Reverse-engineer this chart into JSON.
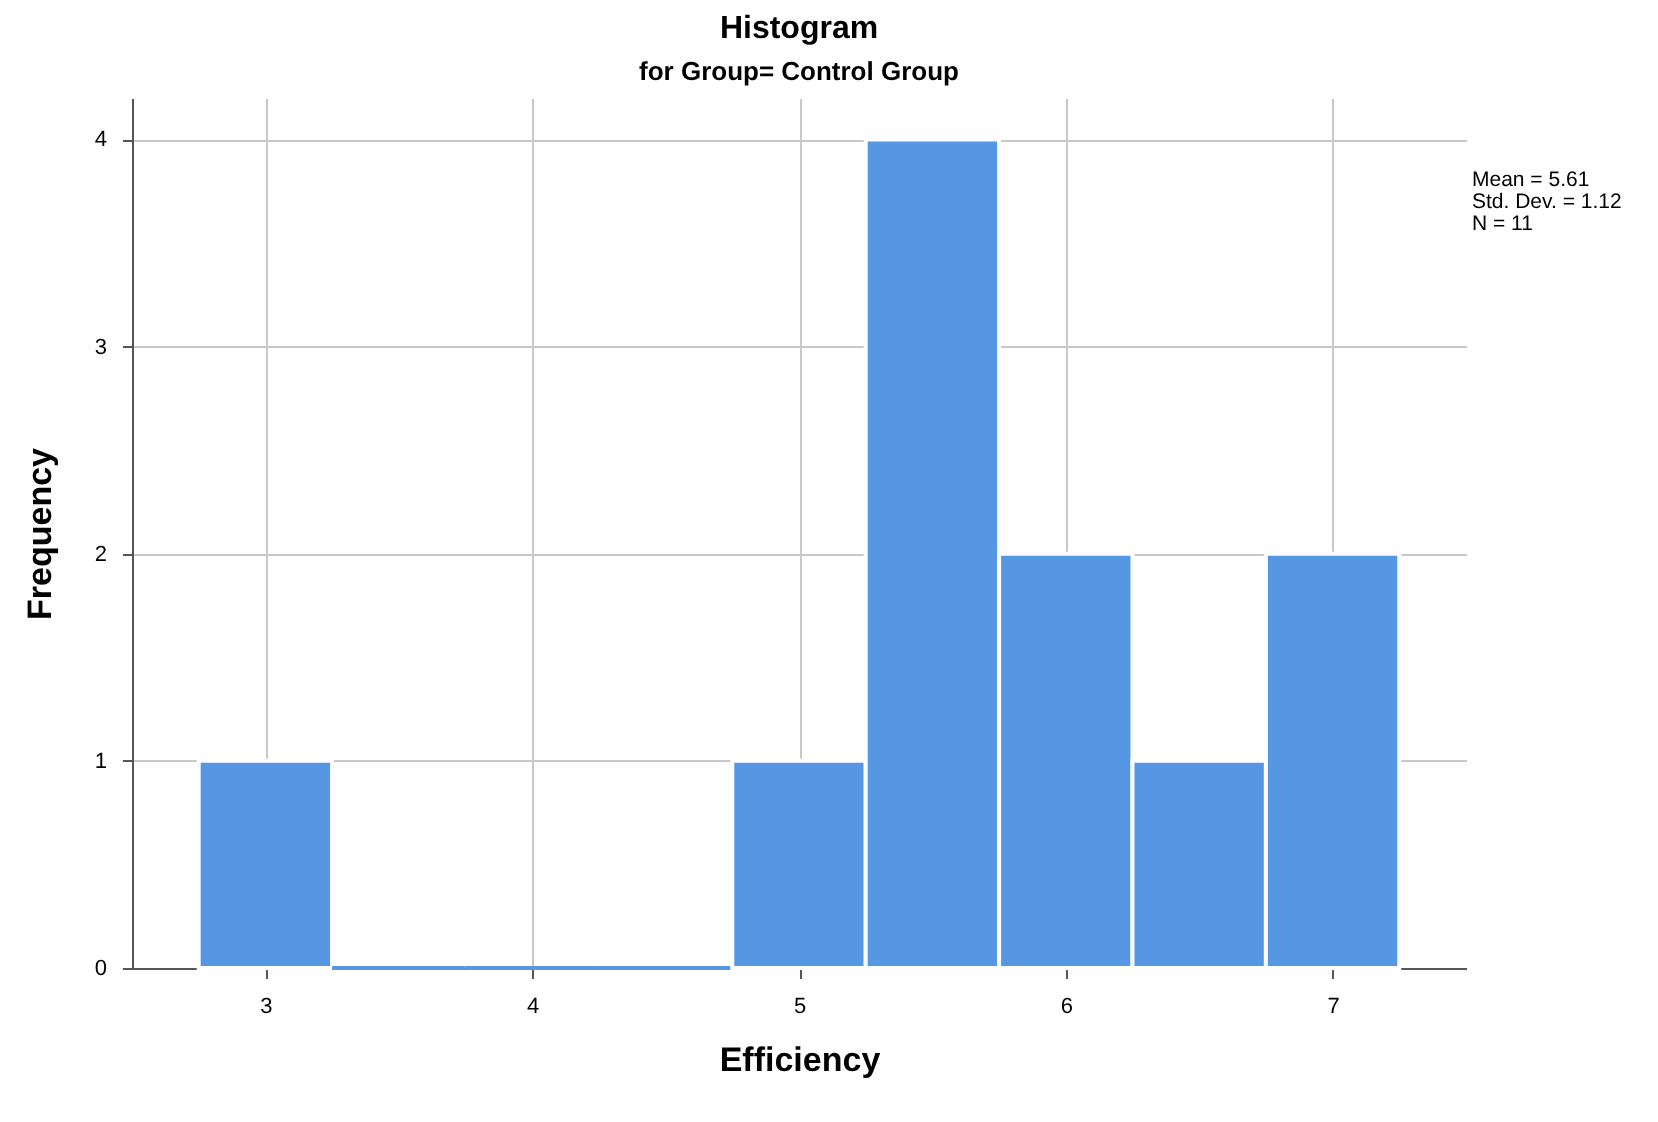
{
  "chart_data": {
    "type": "histogram",
    "title": "Histogram",
    "subtitle": "for Group= Control Group",
    "xlabel": "Efficiency",
    "ylabel": "Frequency",
    "bins": [
      2.75,
      3.25,
      3.75,
      4.25,
      4.75,
      5.25,
      5.75,
      6.25,
      6.75,
      7.25
    ],
    "values": [
      1,
      0,
      0,
      0,
      1,
      4,
      2,
      1,
      2
    ],
    "color": "#5597e3",
    "xlim": [
      2.5,
      7.5
    ],
    "xticks": [
      3,
      4,
      5,
      6,
      7
    ],
    "ylim": [
      0,
      4.2
    ],
    "yticks": [
      0,
      1,
      2,
      3,
      4
    ],
    "grid": true,
    "annotations": [
      "Mean = 5.61",
      "Std. Dev. = 1.12",
      "N = 11"
    ]
  }
}
